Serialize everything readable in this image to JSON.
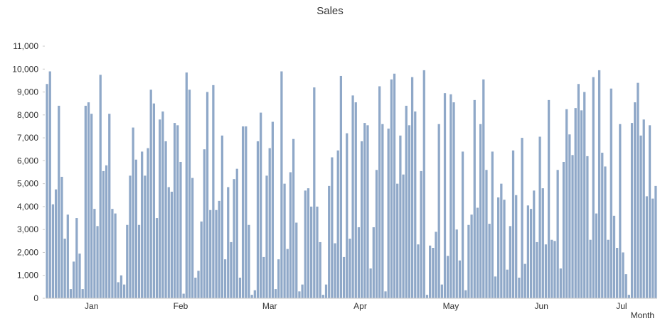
{
  "chart_data": {
    "type": "bar",
    "title": "Sales",
    "xlabel": "Month",
    "ylabel": "",
    "ylim": [
      0,
      11000
    ],
    "yticks": [
      0,
      1000,
      2000,
      3000,
      4000,
      5000,
      6000,
      7000,
      8000,
      9000,
      10000,
      11000
    ],
    "ytick_labels": [
      "0",
      "1,000",
      "2,000",
      "3,000",
      "4,000",
      "5,000",
      "6,000",
      "7,000",
      "8,000",
      "9,000",
      "10,000",
      "11,000"
    ],
    "grid": false,
    "legend": "none",
    "bar_color": "#8fa8c8",
    "months": [
      {
        "label": "Jan",
        "values": [
          9350,
          9900,
          4100,
          4750,
          8400,
          5300,
          2600,
          3650,
          400,
          1600,
          3500,
          1950,
          400,
          8400,
          8550,
          8050,
          3900,
          3150,
          9750,
          5550,
          5800,
          8050,
          3900,
          3700,
          700,
          1000,
          600,
          3200,
          5350,
          7450,
          6050
        ]
      },
      {
        "label": "Feb",
        "values": [
          3200,
          6400,
          5350,
          6550,
          9100,
          8500,
          3500,
          7800,
          8150,
          6850,
          4850,
          4650,
          7650,
          7550,
          5950,
          200,
          9850,
          9100,
          5250,
          900,
          1200,
          3350,
          6500,
          9000,
          3850,
          9300,
          3850,
          4250,
          7100
        ]
      },
      {
        "label": "Mar",
        "values": [
          1700,
          4850,
          2450,
          5200,
          5650,
          900,
          7500,
          7500,
          3200,
          150,
          350,
          6850,
          8100,
          1800,
          5350,
          6550,
          7700,
          400,
          1700,
          9900,
          5000,
          2150,
          5500,
          6950,
          3300,
          300,
          600,
          4700,
          4800,
          4000,
          9200
        ]
      },
      {
        "label": "Apr",
        "values": [
          4000,
          2450,
          150,
          600,
          4900,
          6150,
          2400,
          6450,
          9700,
          1800,
          7200,
          2600,
          8850,
          8550,
          3100,
          6850,
          7650,
          7550,
          1300,
          3100,
          5600,
          9250,
          7600,
          300,
          7400,
          9550,
          9800,
          5000,
          7100,
          5400
        ]
      },
      {
        "label": "May",
        "values": [
          8400,
          7550,
          9650,
          8150,
          2350,
          5550,
          9950,
          150,
          2300,
          2200,
          2900,
          7600,
          600,
          8950,
          1850,
          8900,
          8550,
          3000,
          1650,
          6400,
          350,
          3200,
          3650,
          8650,
          3950,
          7600,
          9550,
          5600,
          3250,
          6400,
          950
        ]
      },
      {
        "label": "Jun",
        "values": [
          4400,
          5000,
          4300,
          1250,
          3150,
          6450,
          4500,
          900,
          7000,
          1500,
          4050,
          3900,
          4700,
          2450,
          7050,
          4800,
          2350,
          8650,
          2550,
          2500,
          5600,
          1300,
          5950,
          8250,
          7150,
          6250,
          8300,
          9350,
          8200,
          9000
        ]
      },
      {
        "label": "Jul",
        "values": [
          6200,
          2550,
          9650,
          3700,
          9950,
          6350,
          5750,
          2550,
          9150,
          3600,
          2200,
          7600,
          2000,
          1050,
          150,
          7650,
          8550,
          9400,
          7100,
          7800,
          4450,
          7550,
          4350,
          4900
        ]
      }
    ]
  }
}
